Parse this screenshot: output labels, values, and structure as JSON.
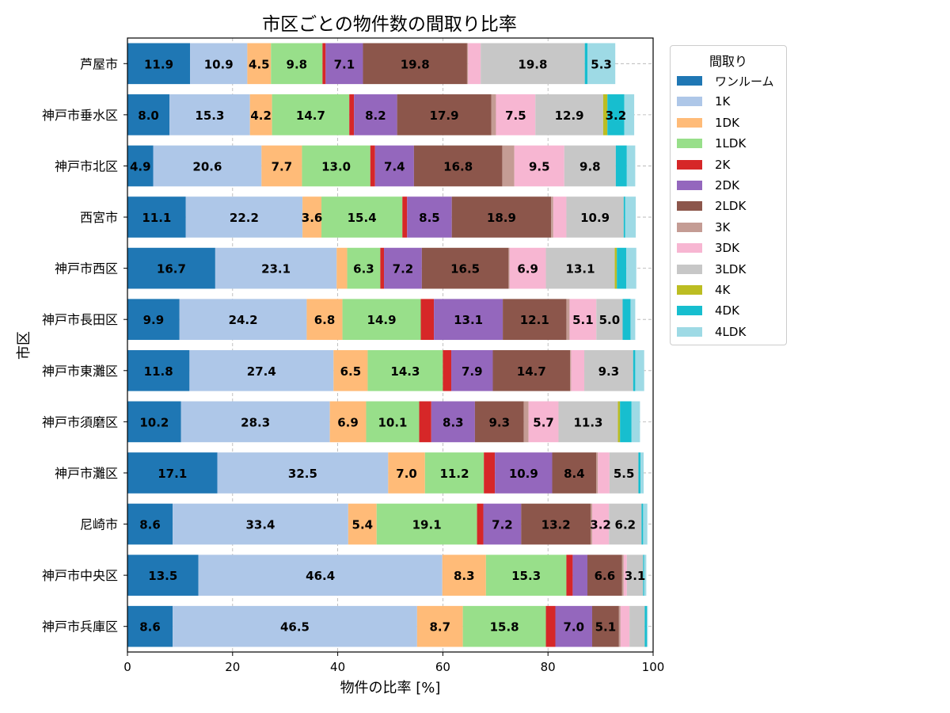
{
  "chart_data": {
    "type": "bar",
    "orientation": "horizontal",
    "stacked": true,
    "title": "市区ごとの物件数の間取り比率",
    "xlabel": "物件の比率 [%]",
    "ylabel": "市区",
    "xlim": [
      0,
      100
    ],
    "xticks": [
      "0",
      "20",
      "40",
      "60",
      "80",
      "100"
    ],
    "grid": true,
    "legend_title": "間取り",
    "legend_position": "outside-right-top",
    "categories": [
      "芦屋市",
      "神戸市垂水区",
      "神戸市北区",
      "西宮市",
      "神戸市西区",
      "神戸市長田区",
      "神戸市東灘区",
      "神戸市須磨区",
      "神戸市灘区",
      "尼崎市",
      "神戸市中央区",
      "神戸市兵庫区"
    ],
    "series": [
      {
        "name": "ワンルーム",
        "color": "#1f77b4",
        "values": [
          11.9,
          8.0,
          4.9,
          11.1,
          16.7,
          9.9,
          11.8,
          10.2,
          17.1,
          8.6,
          13.5,
          8.6
        ]
      },
      {
        "name": "1K",
        "color": "#aec7e8",
        "values": [
          10.9,
          15.3,
          20.6,
          22.2,
          23.1,
          24.2,
          27.4,
          28.3,
          32.5,
          33.4,
          46.4,
          46.5
        ]
      },
      {
        "name": "1DK",
        "color": "#ffbb78",
        "values": [
          4.5,
          4.2,
          7.7,
          3.6,
          2.0,
          6.8,
          6.5,
          6.9,
          7.0,
          5.4,
          8.3,
          8.7
        ]
      },
      {
        "name": "1LDK",
        "color": "#98df8a",
        "values": [
          9.8,
          14.7,
          13.0,
          15.4,
          6.3,
          14.9,
          14.3,
          10.1,
          11.2,
          19.1,
          15.3,
          15.8
        ]
      },
      {
        "name": "2K",
        "color": "#d62728",
        "values": [
          0.6,
          0.9,
          0.9,
          0.9,
          0.7,
          2.5,
          1.6,
          2.3,
          2.1,
          1.2,
          1.2,
          1.8
        ]
      },
      {
        "name": "2DK",
        "color": "#9467bd",
        "values": [
          7.1,
          8.2,
          7.4,
          8.5,
          7.2,
          13.1,
          7.9,
          8.3,
          10.9,
          7.2,
          2.8,
          7.0
        ]
      },
      {
        "name": "2LDK",
        "color": "#8c564b",
        "values": [
          19.8,
          17.9,
          16.8,
          18.9,
          16.5,
          12.1,
          14.7,
          9.3,
          8.4,
          13.2,
          6.6,
          5.1
        ]
      },
      {
        "name": "3K",
        "color": "#c49c94",
        "values": [
          0.2,
          0.9,
          2.3,
          0.4,
          0.2,
          0.6,
          0.2,
          0.9,
          0.3,
          0.3,
          0.3,
          0.3
        ]
      },
      {
        "name": "3DK",
        "color": "#f7b6d2",
        "values": [
          2.4,
          7.5,
          9.5,
          2.5,
          6.9,
          5.1,
          2.5,
          5.7,
          2.2,
          3.2,
          0.6,
          1.7
        ]
      },
      {
        "name": "3LDK",
        "color": "#c7c7c7",
        "values": [
          19.8,
          12.9,
          9.8,
          10.9,
          13.1,
          5.0,
          9.3,
          11.3,
          5.5,
          6.2,
          3.1,
          2.9
        ]
      },
      {
        "name": "4K",
        "color": "#bcbd22",
        "values": [
          0.0,
          0.8,
          0.0,
          0.0,
          0.4,
          0.0,
          0.0,
          0.4,
          0.0,
          0.0,
          0.0,
          0.0
        ]
      },
      {
        "name": "4DK",
        "color": "#17becf",
        "values": [
          0.5,
          3.2,
          2.1,
          0.3,
          1.8,
          1.5,
          0.4,
          2.2,
          0.4,
          0.3,
          0.2,
          0.4
        ]
      },
      {
        "name": "4LDK",
        "color": "#9edae5",
        "values": [
          5.3,
          1.9,
          1.6,
          2.0,
          1.9,
          0.9,
          1.7,
          1.6,
          0.6,
          0.8,
          0.4,
          0.2
        ]
      }
    ]
  }
}
